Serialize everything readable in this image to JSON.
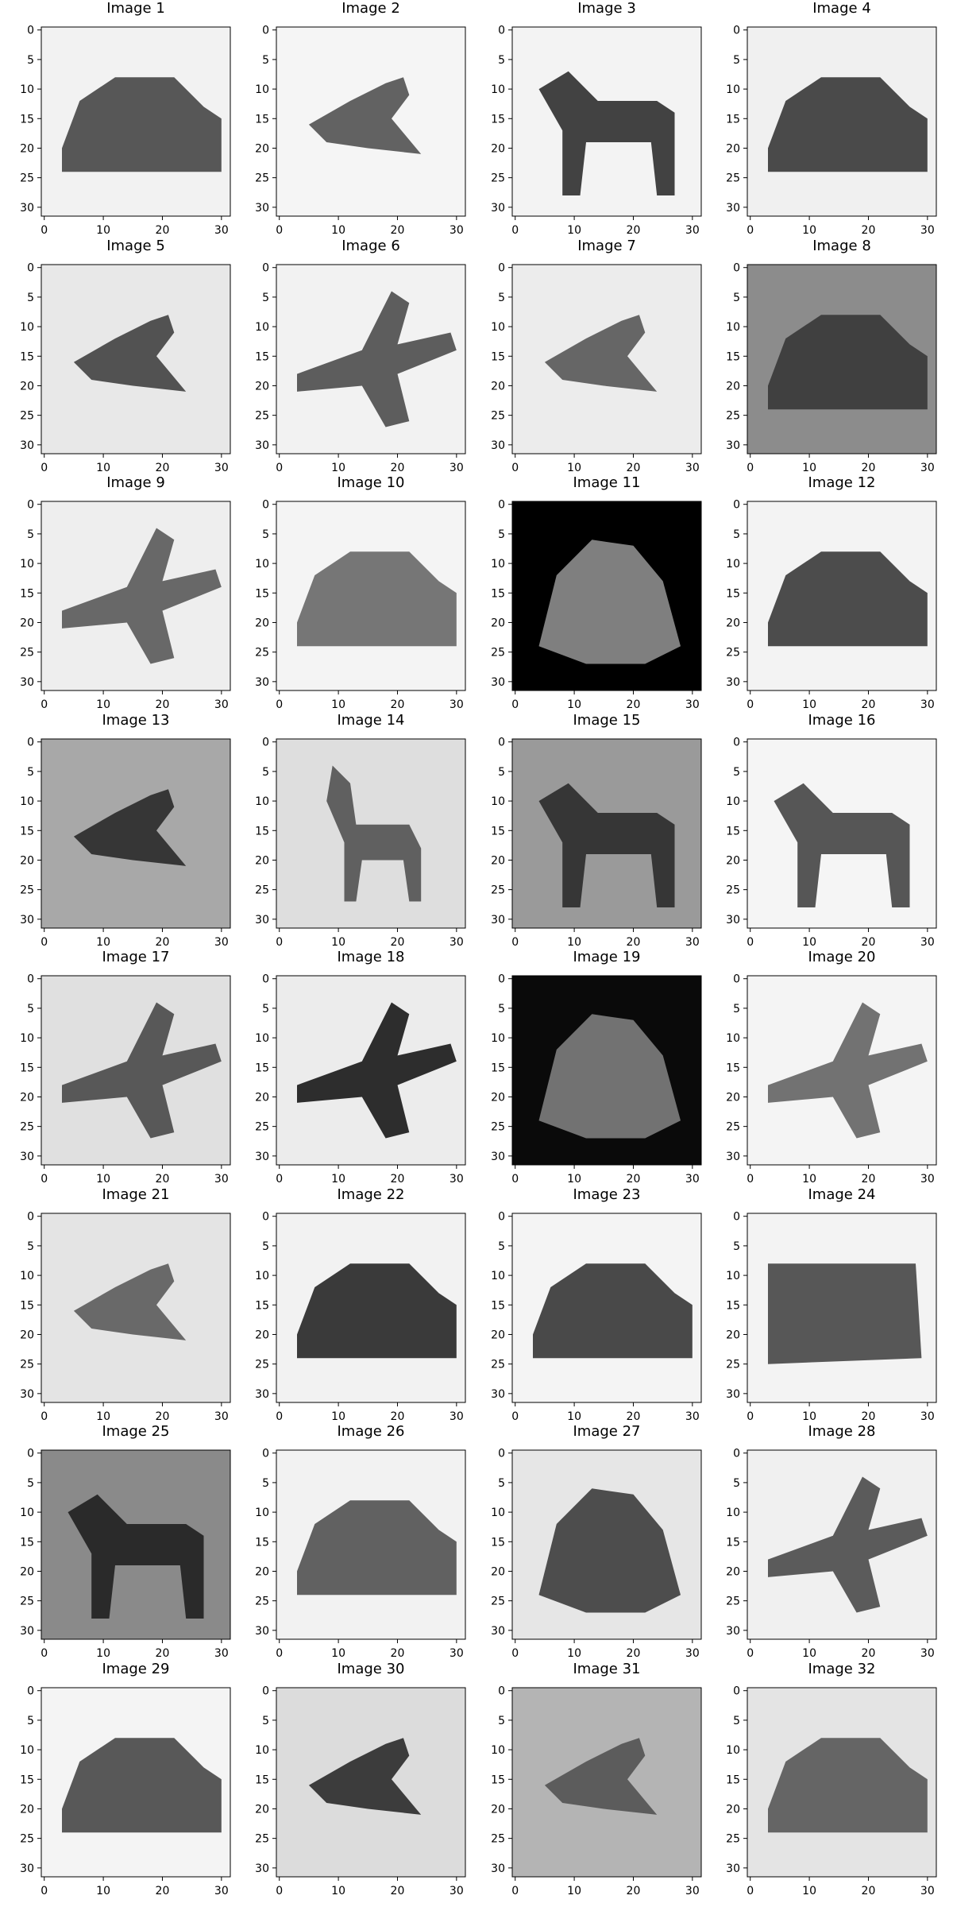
{
  "figure": {
    "grid_rows": 8,
    "grid_cols": 4,
    "colormap": "grayscale",
    "axis_limits": {
      "x": [
        -0.5,
        31.5
      ],
      "y": [
        31.5,
        -0.5
      ]
    },
    "x_ticks": [
      "0",
      "10",
      "20",
      "30"
    ],
    "y_ticks": [
      "0",
      "5",
      "10",
      "15",
      "20",
      "25",
      "30"
    ]
  },
  "panels": [
    {
      "title": "Image 1",
      "depicts": "car",
      "background": "#f2f2f2",
      "shape_tone": "#4a4a4a"
    },
    {
      "title": "Image 2",
      "depicts": "bird",
      "background": "#f5f5f5",
      "shape_tone": "#555555"
    },
    {
      "title": "Image 3",
      "depicts": "horse",
      "background": "#f3f3f3",
      "shape_tone": "#333333"
    },
    {
      "title": "Image 4",
      "depicts": "car",
      "background": "#f0f0f0",
      "shape_tone": "#3c3c3c"
    },
    {
      "title": "Image 5",
      "depicts": "bird",
      "background": "#e8e8e8",
      "shape_tone": "#444444"
    },
    {
      "title": "Image 6",
      "depicts": "airplane",
      "background": "#f2f2f2",
      "shape_tone": "#505050"
    },
    {
      "title": "Image 7",
      "depicts": "bird",
      "background": "#ececec",
      "shape_tone": "#5a5a5a"
    },
    {
      "title": "Image 8",
      "depicts": "car",
      "background": "#8c8c8c",
      "shape_tone": "#3a3a3a"
    },
    {
      "title": "Image 9",
      "depicts": "airplane",
      "background": "#eeeeee",
      "shape_tone": "#5c5c5c"
    },
    {
      "title": "Image 10",
      "depicts": "car",
      "background": "#f4f4f4",
      "shape_tone": "#6a6a6a"
    },
    {
      "title": "Image 11",
      "depicts": "frog",
      "background": "#000000",
      "shape_tone": "#8a8a8a"
    },
    {
      "title": "Image 12",
      "depicts": "car",
      "background": "#f3f3f3",
      "shape_tone": "#3e3e3e"
    },
    {
      "title": "Image 13",
      "depicts": "bird",
      "background": "#a8a8a8",
      "shape_tone": "#2c2c2c"
    },
    {
      "title": "Image 14",
      "depicts": "deer",
      "background": "#dedede",
      "shape_tone": "#555555"
    },
    {
      "title": "Image 15",
      "depicts": "horse",
      "background": "#9a9a9a",
      "shape_tone": "#2e2e2e"
    },
    {
      "title": "Image 16",
      "depicts": "horse",
      "background": "#f5f5f5",
      "shape_tone": "#484848"
    },
    {
      "title": "Image 17",
      "depicts": "airplane",
      "background": "#e0e0e0",
      "shape_tone": "#4c4c4c"
    },
    {
      "title": "Image 18",
      "depicts": "airplane",
      "background": "#ececec",
      "shape_tone": "#1c1c1c"
    },
    {
      "title": "Image 19",
      "depicts": "frog",
      "background": "#0a0a0a",
      "shape_tone": "#7c7c7c"
    },
    {
      "title": "Image 20",
      "depicts": "airplane",
      "background": "#f4f4f4",
      "shape_tone": "#666666"
    },
    {
      "title": "Image 21",
      "depicts": "bird",
      "background": "#e4e4e4",
      "shape_tone": "#5e5e5e"
    },
    {
      "title": "Image 22",
      "depicts": "car",
      "background": "#f2f2f2",
      "shape_tone": "#2a2a2a"
    },
    {
      "title": "Image 23",
      "depicts": "car",
      "background": "#f4f4f4",
      "shape_tone": "#3a3a3a"
    },
    {
      "title": "Image 24",
      "depicts": "truck",
      "background": "#f3f3f3",
      "shape_tone": "#4a4a4a"
    },
    {
      "title": "Image 25",
      "depicts": "horse",
      "background": "#8a8a8a",
      "shape_tone": "#222222"
    },
    {
      "title": "Image 26",
      "depicts": "car",
      "background": "#f2f2f2",
      "shape_tone": "#555555"
    },
    {
      "title": "Image 27",
      "depicts": "frog",
      "background": "#e6e6e6",
      "shape_tone": "#404040"
    },
    {
      "title": "Image 28",
      "depicts": "airplane",
      "background": "#f0f0f0",
      "shape_tone": "#4e4e4e"
    },
    {
      "title": "Image 29",
      "depicts": "car",
      "background": "#f4f4f4",
      "shape_tone": "#4a4a4a"
    },
    {
      "title": "Image 30",
      "depicts": "bird",
      "background": "#dcdcdc",
      "shape_tone": "#2e2e2e"
    },
    {
      "title": "Image 31",
      "depicts": "bird",
      "background": "#b4b4b4",
      "shape_tone": "#555555"
    },
    {
      "title": "Image 32",
      "depicts": "car",
      "background": "#e4e4e4",
      "shape_tone": "#5a5a5a"
    }
  ]
}
